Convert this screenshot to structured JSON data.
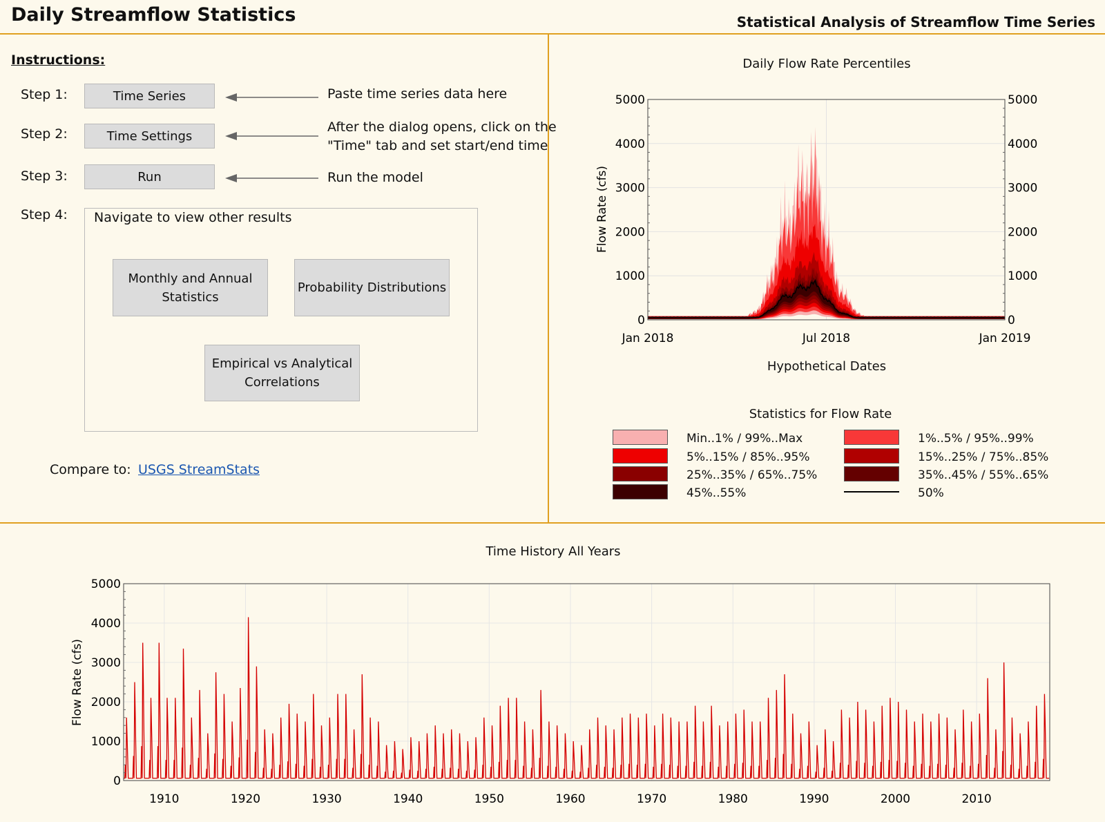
{
  "header": {
    "title": "Daily Streamflow Statistics",
    "subtitle": "Statistical Analysis of Streamflow Time Series"
  },
  "instructions": {
    "heading": "Instructions:",
    "steps": [
      {
        "label": "Step 1:",
        "button": "Time Series",
        "description": [
          "Paste time series data here"
        ]
      },
      {
        "label": "Step 2:",
        "button": "Time Settings",
        "description": [
          "After the dialog opens, click on the",
          "\"Time\" tab and set start/end time"
        ]
      },
      {
        "label": "Step 3:",
        "button": "Run",
        "description": [
          "Run the model"
        ]
      },
      {
        "label": "Step 4:"
      }
    ],
    "navigation": {
      "title": "Navigate to view other results",
      "buttons": [
        {
          "label": [
            "Monthly and Annual",
            "Statistics"
          ]
        },
        {
          "label": [
            "Probability Distributions"
          ]
        },
        {
          "label": [
            "Empirical vs Analytical",
            "Correlations"
          ]
        }
      ]
    },
    "compare": {
      "label": "Compare to:",
      "link": "USGS StreamStats"
    }
  },
  "percentile_chart": {
    "title": "Daily Flow Rate Percentiles",
    "ylabel": "Flow Rate (cfs)",
    "xlabel": "Hypothetical Dates",
    "x_ticks": [
      "Jan 2018",
      "Jul 2018",
      "Jan 2019"
    ],
    "y_ticks": [
      "0",
      "1000",
      "2000",
      "3000",
      "4000",
      "5000"
    ],
    "legend_title": "Statistics for Flow Rate",
    "legend": [
      {
        "label": "Min..1% / 99%..Max",
        "color": "#f8b0b0"
      },
      {
        "label": "1%..5% / 95%..99%",
        "color": "#f83838"
      },
      {
        "label": "5%..15% / 85%..95%",
        "color": "#ee0000"
      },
      {
        "label": "15%..25% / 75%..85%",
        "color": "#b00000"
      },
      {
        "label": "25%..35% / 65%..75%",
        "color": "#8a0000"
      },
      {
        "label": "35%..45% / 55%..65%",
        "color": "#640000"
      },
      {
        "label": "45%..55%",
        "color": "#3c0000"
      },
      {
        "label": "50%",
        "color": "#000000"
      }
    ]
  },
  "history_chart": {
    "title": "Time History All Years",
    "ylabel": "Flow Rate (cfs)",
    "x_ticks": [
      "1910",
      "1920",
      "1930",
      "1940",
      "1950",
      "1960",
      "1970",
      "1980",
      "1990",
      "2000",
      "2010"
    ],
    "y_ticks": [
      "0",
      "1000",
      "2000",
      "3000",
      "4000",
      "5000"
    ],
    "line_color": "#d40000"
  },
  "chart_data": [
    {
      "type": "area",
      "title": "Daily Flow Rate Percentiles",
      "ylabel": "Flow Rate (cfs)",
      "xlabel": "Hypothetical Dates",
      "xlim": [
        "Jan 2018",
        "Jan 2019"
      ],
      "ylim": [
        0,
        5000
      ],
      "peak_date": "Jun 2018",
      "series": [
        {
          "name": "Min..1% / 99%..Max",
          "peak": 4100
        },
        {
          "name": "1%..5% / 95%..99%",
          "peak": 3400
        },
        {
          "name": "5%..15% / 85%..95%",
          "peak": 2300
        },
        {
          "name": "15%..25% / 75%..85%",
          "peak": 1600
        },
        {
          "name": "25%..35% / 65%..75%",
          "peak": 1250
        },
        {
          "name": "35%..45% / 55%..65%",
          "peak": 1080
        },
        {
          "name": "45%..55%",
          "peak": 1000
        },
        {
          "name": "50%",
          "peak": 950
        }
      ]
    },
    {
      "type": "line",
      "title": "Time History All Years",
      "ylabel": "Flow Rate (cfs)",
      "xlim": [
        1905,
        2019
      ],
      "ylim": [
        0,
        5000
      ],
      "x": [
        1905,
        1906,
        1907,
        1908,
        1909,
        1910,
        1911,
        1912,
        1913,
        1914,
        1915,
        1916,
        1917,
        1918,
        1919,
        1920,
        1921,
        1922,
        1923,
        1924,
        1925,
        1926,
        1927,
        1928,
        1929,
        1930,
        1931,
        1932,
        1933,
        1934,
        1935,
        1936,
        1937,
        1938,
        1939,
        1940,
        1941,
        1942,
        1943,
        1944,
        1945,
        1946,
        1947,
        1948,
        1949,
        1950,
        1951,
        1952,
        1953,
        1954,
        1955,
        1956,
        1957,
        1958,
        1959,
        1960,
        1961,
        1962,
        1963,
        1964,
        1965,
        1966,
        1967,
        1968,
        1969,
        1970,
        1971,
        1972,
        1973,
        1974,
        1975,
        1976,
        1977,
        1978,
        1979,
        1980,
        1981,
        1982,
        1983,
        1984,
        1985,
        1986,
        1987,
        1988,
        1989,
        1990,
        1991,
        1992,
        1993,
        1994,
        1995,
        1996,
        1997,
        1998,
        1999,
        2000,
        2001,
        2002,
        2003,
        2004,
        2005,
        2006,
        2007,
        2008,
        2009,
        2010,
        2011,
        2012,
        2013,
        2014,
        2015,
        2016,
        2017,
        2018
      ],
      "y": [
        1600,
        2500,
        3500,
        2100,
        3500,
        2100,
        2100,
        3350,
        1600,
        2300,
        1200,
        2750,
        2200,
        1500,
        2350,
        4150,
        2900,
        1300,
        1200,
        1600,
        1950,
        1700,
        1500,
        2200,
        1400,
        1600,
        2200,
        2200,
        1300,
        2700,
        1600,
        1500,
        900,
        1000,
        800,
        1100,
        1000,
        1200,
        1400,
        1200,
        1300,
        1200,
        1000,
        1100,
        1600,
        1400,
        1900,
        2100,
        2100,
        1500,
        1300,
        2300,
        1500,
        1400,
        1200,
        1000,
        900,
        1300,
        1600,
        1400,
        1300,
        1600,
        1700,
        1600,
        1700,
        1400,
        1700,
        1600,
        1500,
        1500,
        1900,
        1500,
        1900,
        1400,
        1500,
        1700,
        1800,
        1500,
        1500,
        2100,
        2300,
        2700,
        1700,
        1200,
        1500,
        900,
        1300,
        1000,
        1800,
        1600,
        2000,
        1800,
        1500,
        1900,
        2100,
        2000,
        1800,
        1500,
        1700,
        1500,
        1700,
        1600,
        1300,
        1800,
        1500,
        1700,
        2600,
        1300,
        3000,
        1600,
        1200,
        1500,
        1900,
        2200
      ]
    }
  ]
}
